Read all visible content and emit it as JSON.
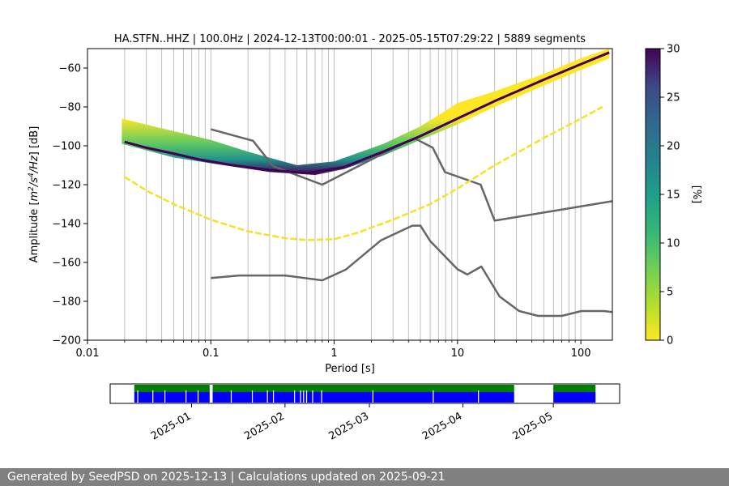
{
  "chart_data": {
    "type": "heatmap",
    "title": "HA.STFN..HHZ | 100.0Hz | 2024-12-13T00:00:01 - 2025-05-15T07:29:22 | 5889 segments",
    "xlabel": "Period [s]",
    "ylabel": "Amplitude [m²/s⁴/Hz] [dB]",
    "ylabel_parts": [
      "Amplitude [",
      "m",
      "2",
      "/s",
      "4",
      "/Hz",
      "] [dB]"
    ],
    "x_scale": "log",
    "xlim": [
      0.01,
      180
    ],
    "ylim": [
      -200,
      -50
    ],
    "x_ticks": [
      0.01,
      0.1,
      1,
      10,
      100
    ],
    "x_tick_labels": [
      "0.01",
      "0.1",
      "1",
      "10",
      "100"
    ],
    "y_ticks": [
      -200,
      -180,
      -160,
      -140,
      -120,
      -100,
      -80,
      -60
    ],
    "y_tick_labels": [
      "−200",
      "−180",
      "−160",
      "−140",
      "−120",
      "−100",
      "−80",
      "−60"
    ],
    "grid": "vertical lines at log minor ticks",
    "colorbar": {
      "label": "[%]",
      "min": 0,
      "max": 30,
      "ticks": [
        0,
        5,
        10,
        15,
        20,
        25,
        30
      ],
      "tick_labels": [
        "0",
        "5",
        "10",
        "15",
        "20",
        "25",
        "30"
      ],
      "colormap": [
        "#fde725",
        "#5ec962",
        "#21918c",
        "#3b528b",
        "#440154"
      ]
    },
    "series": [
      {
        "name": "NHNM",
        "color": "#666666",
        "points": [
          [
            0.1,
            -91.5
          ],
          [
            0.22,
            -97.4
          ],
          [
            0.32,
            -110.5
          ],
          [
            0.8,
            -120
          ],
          [
            3.8,
            -98
          ],
          [
            4.6,
            -96.5
          ],
          [
            6.3,
            -101
          ],
          [
            7.9,
            -113.5
          ],
          [
            15.4,
            -120
          ],
          [
            20,
            -138.5
          ],
          [
            180,
            -128.5
          ]
        ]
      },
      {
        "name": "NLNM",
        "color": "#666666",
        "points": [
          [
            0.1,
            -168
          ],
          [
            0.17,
            -166.7
          ],
          [
            0.4,
            -166.7
          ],
          [
            0.8,
            -169.2
          ],
          [
            1.24,
            -163.7
          ],
          [
            2.4,
            -148.6
          ],
          [
            4.3,
            -141.1
          ],
          [
            5.0,
            -141.1
          ],
          [
            6.0,
            -149
          ],
          [
            10,
            -163.5
          ],
          [
            12,
            -166.2
          ],
          [
            15.6,
            -162.1
          ],
          [
            21.9,
            -177.5
          ],
          [
            31.6,
            -185
          ],
          [
            45,
            -187.5
          ],
          [
            70,
            -187.5
          ],
          [
            101,
            -185
          ],
          [
            154,
            -185
          ],
          [
            180,
            -185.5
          ]
        ]
      },
      {
        "name": "mode",
        "color": "#440154",
        "points": [
          [
            0.02,
            -98
          ],
          [
            0.03,
            -101
          ],
          [
            0.05,
            -104
          ],
          [
            0.08,
            -107
          ],
          [
            0.15,
            -110
          ],
          [
            0.3,
            -112.5
          ],
          [
            0.6,
            -114
          ],
          [
            1.2,
            -111
          ],
          [
            2.5,
            -103
          ],
          [
            5,
            -95
          ],
          [
            10,
            -86
          ],
          [
            20,
            -77
          ],
          [
            50,
            -66
          ],
          [
            100,
            -58
          ],
          [
            170,
            -52
          ]
        ]
      },
      {
        "name": "minimum",
        "color": "#f5e224",
        "points": [
          [
            0.02,
            -116
          ],
          [
            0.03,
            -123
          ],
          [
            0.05,
            -130
          ],
          [
            0.1,
            -138
          ],
          [
            0.2,
            -144
          ],
          [
            0.4,
            -147.5
          ],
          [
            0.6,
            -148.5
          ],
          [
            1.0,
            -148
          ],
          [
            1.5,
            -145
          ],
          [
            3,
            -138
          ],
          [
            6,
            -130
          ],
          [
            10,
            -122
          ],
          [
            20,
            -110
          ],
          [
            50,
            -96
          ],
          [
            100,
            -86
          ],
          [
            150,
            -80
          ]
        ]
      }
    ],
    "heatmap_band": {
      "low_edge": [
        [
          0.019,
          -99
        ],
        [
          0.05,
          -106
        ],
        [
          0.1,
          -109
        ],
        [
          0.3,
          -113.5
        ],
        [
          0.7,
          -115
        ],
        [
          1.2,
          -112
        ],
        [
          2.5,
          -105
        ],
        [
          5,
          -97
        ],
        [
          10,
          -89
        ],
        [
          20,
          -80
        ],
        [
          50,
          -69
        ],
        [
          100,
          -61
        ],
        [
          170,
          -55
        ]
      ],
      "high_edge": [
        [
          0.019,
          -86
        ],
        [
          0.04,
          -91
        ],
        [
          0.1,
          -97
        ],
        [
          0.2,
          -103
        ],
        [
          0.5,
          -110
        ],
        [
          1.0,
          -108
        ],
        [
          2.5,
          -99
        ],
        [
          5,
          -90
        ],
        [
          8,
          -82
        ],
        [
          10,
          -78
        ],
        [
          20,
          -72
        ],
        [
          50,
          -63
        ],
        [
          100,
          -55
        ],
        [
          170,
          -50
        ]
      ]
    }
  },
  "timeline": {
    "tick_labels": [
      "2025-01",
      "2025-02",
      "2025-03",
      "2025-04",
      "2025-05"
    ],
    "tick_dates": [
      "2025-01-01",
      "2025-02-01",
      "2025-03-01",
      "2025-04-01",
      "2025-05-01"
    ],
    "range": [
      "2024-12-05",
      "2025-05-23"
    ],
    "data_colors": {
      "available": "#0000ff",
      "used": "#008000"
    },
    "coverage": [
      [
        "2024-12-13",
        "2025-01-07"
      ],
      [
        "2025-01-08",
        "2025-04-18"
      ],
      [
        "2025-05-01",
        "2025-05-15"
      ]
    ],
    "gaps": [
      "2024-12-14",
      "2024-12-19",
      "2024-12-23",
      "2024-12-30",
      "2025-01-03",
      "2025-01-14",
      "2025-01-21",
      "2025-01-26",
      "2025-01-28",
      "2025-02-04",
      "2025-02-06",
      "2025-02-07",
      "2025-02-08",
      "2025-02-10",
      "2025-02-13",
      "2025-03-02",
      "2025-03-22",
      "2025-04-06"
    ]
  },
  "footer": {
    "text": "Generated by SeedPSD on 2025-12-13 | Calculations updated on 2025-09-21"
  }
}
